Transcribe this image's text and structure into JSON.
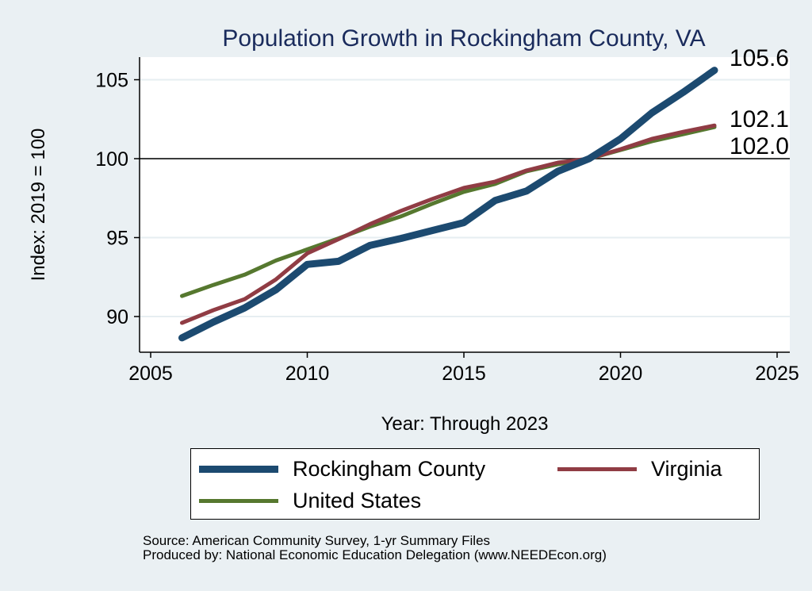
{
  "chart_data": {
    "type": "line",
    "title": "Population Growth in Rockingham County, VA",
    "xlabel": "Year: Through 2023",
    "ylabel": "Index: 2019 = 100",
    "xlim": [
      2005,
      2025.5
    ],
    "ylim": [
      87.8,
      106.5
    ],
    "xticks": [
      2005,
      2010,
      2015,
      2020,
      2025
    ],
    "xtick_labels": [
      "2005",
      "2010",
      "2015",
      "2020",
      "2025"
    ],
    "yticks": [
      90,
      95,
      100,
      105
    ],
    "ytick_labels": [
      "90",
      "95",
      "100",
      "105"
    ],
    "reference_line": 100,
    "grid": true,
    "x": [
      2006,
      2007,
      2008,
      2009,
      2010,
      2011,
      2012,
      2013,
      2014,
      2015,
      2016,
      2017,
      2018,
      2019,
      2020,
      2021,
      2022,
      2023
    ],
    "series": [
      {
        "name": "Rockingham  County",
        "color": "#1c4a70",
        "width": 9,
        "values": [
          88.65,
          89.65,
          90.55,
          91.7,
          93.3,
          93.5,
          94.5,
          94.95,
          95.45,
          95.95,
          97.35,
          97.95,
          99.2,
          100,
          101.25,
          102.9,
          104.2,
          105.6
        ],
        "end_label": "105.6"
      },
      {
        "name": "Virginia",
        "color": "#903c44",
        "width": 5,
        "values": [
          89.6,
          90.4,
          91.1,
          92.35,
          94.0,
          94.9,
          95.85,
          96.7,
          97.45,
          98.15,
          98.55,
          99.25,
          99.75,
          100,
          100.6,
          101.25,
          101.7,
          102.1
        ],
        "end_label": "102.1"
      },
      {
        "name": "United States",
        "color": "#56782f",
        "width": 5,
        "values": [
          91.3,
          92.0,
          92.65,
          93.55,
          94.25,
          94.95,
          95.7,
          96.35,
          97.15,
          97.9,
          98.4,
          99.2,
          99.65,
          100,
          100.55,
          101.1,
          101.55,
          102.0
        ],
        "end_label": "102.0"
      }
    ],
    "legend_position": "bottom"
  },
  "legend": {
    "items": [
      "Rockingham  County",
      "Virginia",
      "United States"
    ]
  },
  "notes": {
    "source": "Source: American Community Survey, 1-yr Summary Files",
    "produced": "Produced by: National Economic Education Delegation (www.NEEDEcon.org)"
  },
  "colors": {
    "background": "#eaf0f3",
    "title": "#1a2b5c"
  }
}
